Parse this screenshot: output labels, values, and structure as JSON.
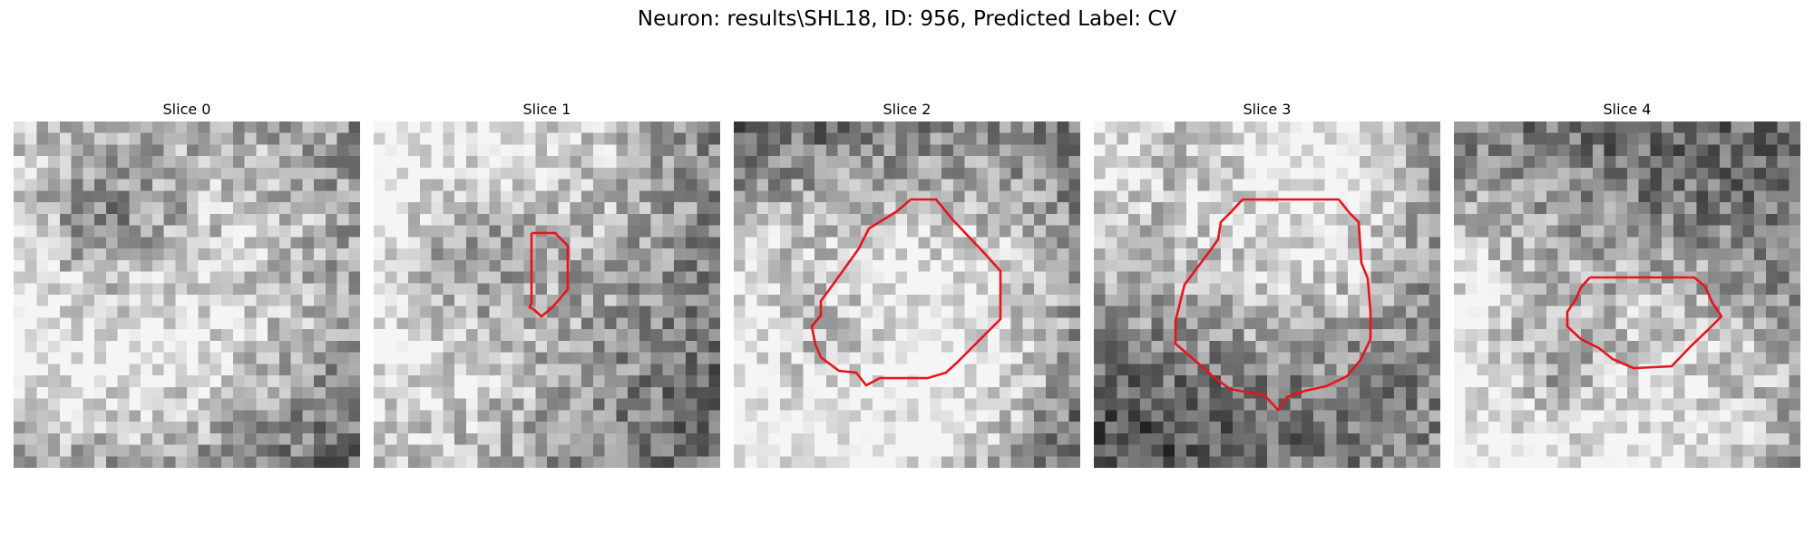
{
  "figure": {
    "title": "Neuron: results\\SHL18, ID: 956, Predicted Label: CV"
  },
  "slices": [
    {
      "label": "Slice 0",
      "has_contour": false
    },
    {
      "label": "Slice 1",
      "has_contour": true
    },
    {
      "label": "Slice 2",
      "has_contour": true
    },
    {
      "label": "Slice 3",
      "has_contour": true
    },
    {
      "label": "Slice 4",
      "has_contour": true
    }
  ],
  "colors": {
    "contour": "#e8141c",
    "background": "#ffffff"
  },
  "colormap": "gray"
}
